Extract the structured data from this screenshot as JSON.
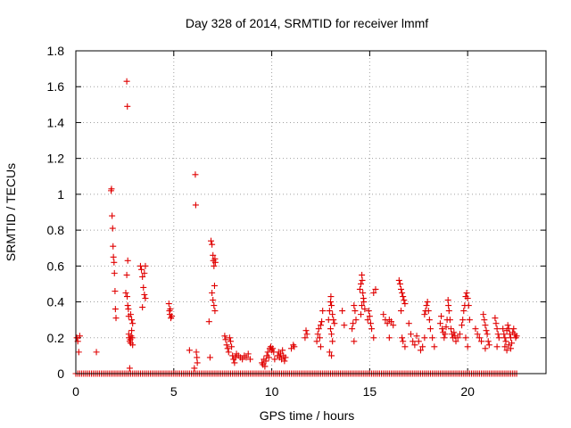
{
  "chart_data": {
    "type": "scatter",
    "title": "Day 328 of 2014, SRMTID for receiver lmmf",
    "xlabel": "GPS time / hours",
    "ylabel": "SRMTID / TECUs",
    "xlim": [
      0,
      24
    ],
    "ylim": [
      0,
      1.8
    ],
    "xticks": [
      0,
      5,
      10,
      15,
      20
    ],
    "yticks": [
      0,
      0.2,
      0.4,
      0.6,
      0.8,
      1,
      1.2,
      1.4,
      1.6,
      1.8
    ],
    "grid": true,
    "marker": "plus",
    "color": "#e00000",
    "zero_band": {
      "x_start": 0.0,
      "x_end": 22.5,
      "step": 0.1,
      "y": 0
    },
    "series": [
      {
        "name": "SRMTID",
        "points": [
          [
            0.05,
            0.2
          ],
          [
            0.1,
            0.18
          ],
          [
            0.15,
            0.12
          ],
          [
            0.2,
            0.21
          ],
          [
            1.05,
            0.12
          ],
          [
            1.8,
            1.02
          ],
          [
            1.82,
            1.03
          ],
          [
            1.85,
            0.88
          ],
          [
            1.88,
            0.81
          ],
          [
            1.9,
            0.71
          ],
          [
            1.92,
            0.65
          ],
          [
            1.95,
            0.62
          ],
          [
            1.97,
            0.56
          ],
          [
            2.0,
            0.46
          ],
          [
            2.02,
            0.36
          ],
          [
            2.05,
            0.31
          ],
          [
            2.55,
            0.45
          ],
          [
            2.6,
            0.55
          ],
          [
            2.62,
            0.43
          ],
          [
            2.65,
            0.38
          ],
          [
            2.68,
            0.36
          ],
          [
            2.7,
            0.32
          ],
          [
            2.6,
            1.63
          ],
          [
            2.63,
            1.49
          ],
          [
            2.65,
            0.63
          ],
          [
            2.7,
            0.22
          ],
          [
            2.72,
            0.2
          ],
          [
            2.75,
            0.18
          ],
          [
            2.78,
            0.19
          ],
          [
            2.8,
            0.17
          ],
          [
            2.82,
            0.21
          ],
          [
            2.85,
            0.24
          ],
          [
            2.88,
            0.2
          ],
          [
            2.9,
            0.16
          ],
          [
            2.8,
            0.33
          ],
          [
            2.85,
            0.3
          ],
          [
            2.9,
            0.28
          ],
          [
            2.75,
            0.03
          ],
          [
            3.3,
            0.6
          ],
          [
            3.35,
            0.58
          ],
          [
            3.4,
            0.54
          ],
          [
            3.45,
            0.48
          ],
          [
            3.5,
            0.44
          ],
          [
            3.55,
            0.42
          ],
          [
            3.4,
            0.37
          ],
          [
            3.5,
            0.56
          ],
          [
            3.55,
            0.6
          ],
          [
            4.75,
            0.39
          ],
          [
            4.78,
            0.35
          ],
          [
            4.8,
            0.33
          ],
          [
            4.85,
            0.31
          ],
          [
            4.9,
            0.32
          ],
          [
            4.82,
            0.36
          ],
          [
            5.8,
            0.13
          ],
          [
            6.1,
            1.11
          ],
          [
            6.12,
            0.94
          ],
          [
            6.15,
            0.12
          ],
          [
            6.18,
            0.09
          ],
          [
            6.2,
            0.06
          ],
          [
            6.05,
            0.03
          ],
          [
            6.8,
            0.29
          ],
          [
            6.85,
            0.09
          ],
          [
            6.9,
            0.74
          ],
          [
            6.95,
            0.72
          ],
          [
            7.0,
            0.66
          ],
          [
            7.02,
            0.63
          ],
          [
            7.05,
            0.6
          ],
          [
            7.08,
            0.49
          ],
          [
            7.0,
            0.41
          ],
          [
            7.05,
            0.38
          ],
          [
            6.95,
            0.45
          ],
          [
            7.1,
            0.64
          ],
          [
            7.12,
            0.62
          ],
          [
            7.1,
            0.35
          ],
          [
            7.6,
            0.21
          ],
          [
            7.65,
            0.19
          ],
          [
            7.7,
            0.16
          ],
          [
            7.75,
            0.14
          ],
          [
            7.8,
            0.12
          ],
          [
            7.85,
            0.2
          ],
          [
            7.9,
            0.18
          ],
          [
            7.95,
            0.15
          ],
          [
            8.0,
            0.1
          ],
          [
            8.05,
            0.08
          ],
          [
            8.1,
            0.06
          ],
          [
            8.15,
            0.09
          ],
          [
            8.2,
            0.11
          ],
          [
            8.3,
            0.1
          ],
          [
            8.4,
            0.09
          ],
          [
            8.5,
            0.08
          ],
          [
            8.6,
            0.1
          ],
          [
            8.7,
            0.09
          ],
          [
            8.8,
            0.11
          ],
          [
            8.9,
            0.08
          ],
          [
            9.5,
            0.06
          ],
          [
            9.55,
            0.05
          ],
          [
            9.6,
            0.08
          ],
          [
            9.65,
            0.04
          ],
          [
            9.7,
            0.07
          ],
          [
            9.75,
            0.1
          ],
          [
            9.8,
            0.12
          ],
          [
            9.85,
            0.09
          ],
          [
            9.9,
            0.14
          ],
          [
            9.95,
            0.15
          ],
          [
            10.0,
            0.13
          ],
          [
            10.05,
            0.14
          ],
          [
            10.1,
            0.12
          ],
          [
            10.15,
            0.08
          ],
          [
            10.3,
            0.1
          ],
          [
            10.35,
            0.12
          ],
          [
            10.4,
            0.09
          ],
          [
            10.45,
            0.11
          ],
          [
            10.5,
            0.08
          ],
          [
            10.55,
            0.13
          ],
          [
            10.6,
            0.1
          ],
          [
            10.65,
            0.07
          ],
          [
            10.7,
            0.09
          ],
          [
            11.0,
            0.14
          ],
          [
            11.1,
            0.16
          ],
          [
            11.15,
            0.15
          ],
          [
            11.7,
            0.2
          ],
          [
            11.75,
            0.24
          ],
          [
            11.8,
            0.22
          ],
          [
            12.3,
            0.18
          ],
          [
            12.35,
            0.22
          ],
          [
            12.4,
            0.25
          ],
          [
            12.45,
            0.2
          ],
          [
            12.5,
            0.27
          ],
          [
            12.55,
            0.29
          ],
          [
            12.6,
            0.35
          ],
          [
            12.5,
            0.15
          ],
          [
            12.9,
            0.3
          ],
          [
            12.95,
            0.35
          ],
          [
            13.0,
            0.4
          ],
          [
            13.02,
            0.43
          ],
          [
            13.05,
            0.38
          ],
          [
            13.1,
            0.33
          ],
          [
            13.15,
            0.3
          ],
          [
            13.0,
            0.25
          ],
          [
            13.05,
            0.22
          ],
          [
            13.1,
            0.18
          ],
          [
            12.95,
            0.12
          ],
          [
            13.05,
            0.1
          ],
          [
            13.2,
            0.28
          ],
          [
            13.6,
            0.35
          ],
          [
            13.7,
            0.27
          ],
          [
            14.1,
            0.25
          ],
          [
            14.15,
            0.28
          ],
          [
            14.2,
            0.38
          ],
          [
            14.25,
            0.35
          ],
          [
            14.3,
            0.3
          ],
          [
            14.2,
            0.18
          ],
          [
            14.5,
            0.47
          ],
          [
            14.55,
            0.5
          ],
          [
            14.6,
            0.55
          ],
          [
            14.62,
            0.52
          ],
          [
            14.65,
            0.45
          ],
          [
            14.68,
            0.42
          ],
          [
            14.7,
            0.4
          ],
          [
            14.75,
            0.36
          ],
          [
            14.6,
            0.38
          ],
          [
            14.55,
            0.33
          ],
          [
            14.9,
            0.3
          ],
          [
            14.95,
            0.35
          ],
          [
            15.0,
            0.32
          ],
          [
            15.05,
            0.28
          ],
          [
            15.1,
            0.25
          ],
          [
            15.2,
            0.2
          ],
          [
            15.2,
            0.45
          ],
          [
            15.3,
            0.47
          ],
          [
            15.7,
            0.33
          ],
          [
            15.8,
            0.3
          ],
          [
            15.9,
            0.28
          ],
          [
            16.0,
            0.3
          ],
          [
            16.1,
            0.29
          ],
          [
            16.2,
            0.27
          ],
          [
            16.0,
            0.2
          ],
          [
            16.5,
            0.52
          ],
          [
            16.55,
            0.5
          ],
          [
            16.6,
            0.47
          ],
          [
            16.65,
            0.45
          ],
          [
            16.7,
            0.43
          ],
          [
            16.75,
            0.41
          ],
          [
            16.8,
            0.39
          ],
          [
            16.6,
            0.35
          ],
          [
            16.65,
            0.2
          ],
          [
            16.7,
            0.18
          ],
          [
            16.8,
            0.15
          ],
          [
            17.0,
            0.28
          ],
          [
            17.1,
            0.22
          ],
          [
            17.2,
            0.18
          ],
          [
            17.3,
            0.16
          ],
          [
            17.4,
            0.21
          ],
          [
            17.5,
            0.18
          ],
          [
            17.6,
            0.13
          ],
          [
            17.7,
            0.15
          ],
          [
            17.8,
            0.2
          ],
          [
            17.8,
            0.33
          ],
          [
            17.85,
            0.35
          ],
          [
            17.9,
            0.38
          ],
          [
            17.95,
            0.4
          ],
          [
            18.0,
            0.35
          ],
          [
            18.05,
            0.3
          ],
          [
            18.1,
            0.25
          ],
          [
            18.2,
            0.2
          ],
          [
            18.3,
            0.15
          ],
          [
            18.6,
            0.28
          ],
          [
            18.65,
            0.32
          ],
          [
            18.7,
            0.25
          ],
          [
            18.75,
            0.23
          ],
          [
            18.8,
            0.2
          ],
          [
            18.85,
            0.22
          ],
          [
            18.9,
            0.26
          ],
          [
            18.95,
            0.3
          ],
          [
            19.0,
            0.41
          ],
          [
            19.02,
            0.38
          ],
          [
            19.05,
            0.35
          ],
          [
            19.1,
            0.3
          ],
          [
            19.15,
            0.25
          ],
          [
            19.2,
            0.22
          ],
          [
            19.25,
            0.2
          ],
          [
            19.3,
            0.23
          ],
          [
            19.35,
            0.21
          ],
          [
            19.4,
            0.18
          ],
          [
            19.5,
            0.2
          ],
          [
            19.6,
            0.22
          ],
          [
            19.7,
            0.27
          ],
          [
            19.75,
            0.3
          ],
          [
            19.8,
            0.35
          ],
          [
            19.85,
            0.38
          ],
          [
            19.9,
            0.43
          ],
          [
            19.95,
            0.45
          ],
          [
            20.0,
            0.42
          ],
          [
            20.05,
            0.38
          ],
          [
            20.1,
            0.3
          ],
          [
            19.9,
            0.2
          ],
          [
            20.0,
            0.15
          ],
          [
            20.4,
            0.25
          ],
          [
            20.5,
            0.22
          ],
          [
            20.6,
            0.2
          ],
          [
            20.7,
            0.18
          ],
          [
            20.8,
            0.33
          ],
          [
            20.85,
            0.3
          ],
          [
            20.9,
            0.27
          ],
          [
            20.95,
            0.24
          ],
          [
            21.0,
            0.22
          ],
          [
            21.05,
            0.18
          ],
          [
            21.1,
            0.16
          ],
          [
            20.9,
            0.14
          ],
          [
            21.4,
            0.31
          ],
          [
            21.45,
            0.28
          ],
          [
            21.5,
            0.25
          ],
          [
            21.55,
            0.22
          ],
          [
            21.6,
            0.2
          ],
          [
            21.5,
            0.15
          ],
          [
            21.8,
            0.25
          ],
          [
            21.85,
            0.22
          ],
          [
            21.9,
            0.2
          ],
          [
            21.95,
            0.18
          ],
          [
            22.0,
            0.24
          ],
          [
            22.05,
            0.27
          ],
          [
            22.1,
            0.25
          ],
          [
            22.15,
            0.22
          ],
          [
            22.2,
            0.2
          ],
          [
            22.25,
            0.17
          ],
          [
            22.3,
            0.23
          ],
          [
            22.35,
            0.25
          ],
          [
            22.4,
            0.22
          ],
          [
            22.45,
            0.2
          ],
          [
            22.5,
            0.21
          ],
          [
            21.9,
            0.15
          ],
          [
            22.0,
            0.13
          ],
          [
            22.1,
            0.16
          ],
          [
            22.2,
            0.14
          ]
        ]
      }
    ]
  }
}
